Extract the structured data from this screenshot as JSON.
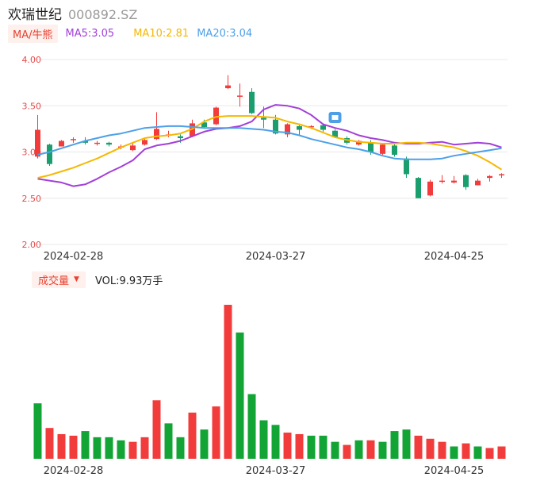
{
  "header": {
    "name": "欢瑞世纪",
    "code": "000892.SZ"
  },
  "ma_bar": {
    "type_label": "MA/牛熊",
    "ma5": "MA5:3.05",
    "ma10": "MA10:2.81",
    "ma20": "MA20:3.04"
  },
  "volume_bar": {
    "type_label": "成交量",
    "value": "VOL:9.93万手"
  },
  "colors": {
    "up": "#f23c3c",
    "down": "#1a9e6e",
    "vol_up": "#f23c3c",
    "vol_down": "#13a436",
    "ma5": "#a23fd9",
    "ma10": "#f5b800",
    "ma20": "#4da0e8",
    "grid": "#e8e8e8"
  },
  "chart_data": [
    {
      "type": "candlestick",
      "y_ticks": [
        "4.00",
        "3.50",
        "3.00",
        "2.50",
        "2.00"
      ],
      "ylim": [
        2.0,
        4.0
      ],
      "x_ticks": [
        {
          "index": 3,
          "label": "2024-02-28"
        },
        {
          "index": 20,
          "label": "2024-03-27"
        },
        {
          "index": 35,
          "label": "2024-04-25"
        }
      ],
      "candles": [
        {
          "o": 2.95,
          "c": 3.24,
          "h": 3.4,
          "l": 2.93
        },
        {
          "o": 3.08,
          "c": 2.87,
          "h": 3.09,
          "l": 2.85
        },
        {
          "o": 3.06,
          "c": 3.12,
          "h": 3.13,
          "l": 3.06
        },
        {
          "o": 3.13,
          "c": 3.14,
          "h": 3.16,
          "l": 3.1
        },
        {
          "o": 3.12,
          "c": 3.1,
          "h": 3.16,
          "l": 3.08
        },
        {
          "o": 3.09,
          "c": 3.1,
          "h": 3.12,
          "l": 3.07
        },
        {
          "o": 3.1,
          "c": 3.08,
          "h": 3.11,
          "l": 3.06
        },
        {
          "o": 3.06,
          "c": 3.06,
          "h": 3.08,
          "l": 3.03
        },
        {
          "o": 3.02,
          "c": 3.07,
          "h": 3.09,
          "l": 3.01
        },
        {
          "o": 3.08,
          "c": 3.13,
          "h": 3.14,
          "l": 3.07
        },
        {
          "o": 3.14,
          "c": 3.25,
          "h": 3.43,
          "l": 3.13
        },
        {
          "o": 3.19,
          "c": 3.19,
          "h": 3.23,
          "l": 3.16
        },
        {
          "o": 3.17,
          "c": 3.15,
          "h": 3.19,
          "l": 3.1
        },
        {
          "o": 3.17,
          "c": 3.31,
          "h": 3.35,
          "l": 3.16
        },
        {
          "o": 3.32,
          "c": 3.27,
          "h": 3.35,
          "l": 3.26
        },
        {
          "o": 3.3,
          "c": 3.48,
          "h": 3.49,
          "l": 3.29
        },
        {
          "o": 3.69,
          "c": 3.72,
          "h": 3.83,
          "l": 3.68
        },
        {
          "o": 3.6,
          "c": 3.61,
          "h": 3.74,
          "l": 3.49
        },
        {
          "o": 3.65,
          "c": 3.42,
          "h": 3.69,
          "l": 3.41
        },
        {
          "o": 3.37,
          "c": 3.35,
          "h": 3.49,
          "l": 3.26
        },
        {
          "o": 3.35,
          "c": 3.2,
          "h": 3.4,
          "l": 3.19
        },
        {
          "o": 3.19,
          "c": 3.3,
          "h": 3.31,
          "l": 3.16
        },
        {
          "o": 3.28,
          "c": 3.24,
          "h": 3.29,
          "l": 3.18
        },
        {
          "o": 3.27,
          "c": 3.28,
          "h": 3.29,
          "l": 3.25
        },
        {
          "o": 3.29,
          "c": 3.24,
          "h": 3.3,
          "l": 3.22
        },
        {
          "o": 3.23,
          "c": 3.16,
          "h": 3.25,
          "l": 3.15
        },
        {
          "o": 3.15,
          "c": 3.1,
          "h": 3.17,
          "l": 3.08
        },
        {
          "o": 3.08,
          "c": 3.12,
          "h": 3.13,
          "l": 3.07
        },
        {
          "o": 3.1,
          "c": 3.0,
          "h": 3.13,
          "l": 2.97
        },
        {
          "o": 2.98,
          "c": 3.08,
          "h": 3.09,
          "l": 2.97
        },
        {
          "o": 3.07,
          "c": 2.97,
          "h": 3.09,
          "l": 2.95
        },
        {
          "o": 2.93,
          "c": 2.76,
          "h": 2.95,
          "l": 2.72
        },
        {
          "o": 2.72,
          "c": 2.5,
          "h": 2.73,
          "l": 2.5
        },
        {
          "o": 2.53,
          "c": 2.68,
          "h": 2.7,
          "l": 2.52
        },
        {
          "o": 2.68,
          "c": 2.69,
          "h": 2.75,
          "l": 2.66
        },
        {
          "o": 2.67,
          "c": 2.69,
          "h": 2.74,
          "l": 2.66
        },
        {
          "o": 2.75,
          "c": 2.62,
          "h": 2.76,
          "l": 2.59
        },
        {
          "o": 2.64,
          "c": 2.69,
          "h": 2.71,
          "l": 2.64
        },
        {
          "o": 2.72,
          "c": 2.74,
          "h": 2.75,
          "l": 2.68
        },
        {
          "o": 2.75,
          "c": 2.76,
          "h": 2.77,
          "l": 2.72
        }
      ],
      "ma5": [
        2.71,
        2.69,
        2.67,
        2.63,
        2.65,
        2.71,
        2.78,
        2.84,
        2.91,
        3.03,
        3.07,
        3.09,
        3.12,
        3.17,
        3.22,
        3.25,
        3.26,
        3.28,
        3.33,
        3.46,
        3.51,
        3.5,
        3.47,
        3.4,
        3.3,
        3.26,
        3.23,
        3.18,
        3.15,
        3.13,
        3.1,
        3.09,
        3.09,
        3.1,
        3.11,
        3.08,
        3.09,
        3.1,
        3.09,
        3.05
      ],
      "ma10": [
        2.72,
        2.75,
        2.79,
        2.83,
        2.88,
        2.93,
        2.99,
        3.05,
        3.1,
        3.15,
        3.17,
        3.18,
        3.2,
        3.25,
        3.33,
        3.38,
        3.39,
        3.39,
        3.39,
        3.38,
        3.37,
        3.33,
        3.3,
        3.26,
        3.21,
        3.16,
        3.13,
        3.11,
        3.1,
        3.09,
        3.09,
        3.1,
        3.1,
        3.09,
        3.07,
        3.05,
        3.01,
        2.96,
        2.89,
        2.81
      ],
      "ma20": [
        2.97,
        3.0,
        3.04,
        3.08,
        3.12,
        3.15,
        3.18,
        3.2,
        3.23,
        3.26,
        3.27,
        3.28,
        3.28,
        3.27,
        3.26,
        3.26,
        3.26,
        3.26,
        3.25,
        3.24,
        3.22,
        3.21,
        3.18,
        3.14,
        3.11,
        3.08,
        3.05,
        3.03,
        3.0,
        2.96,
        2.93,
        2.92,
        2.92,
        2.92,
        2.93,
        2.96,
        2.98,
        3.0,
        3.02,
        3.04
      ]
    },
    {
      "type": "bar",
      "ylim": [
        0,
        100
      ],
      "values": [
        36,
        20,
        16,
        15,
        18,
        14,
        14,
        12,
        11,
        14,
        38,
        23,
        14,
        30,
        19,
        34,
        100,
        82,
        42,
        25,
        22,
        17,
        16,
        15,
        15,
        11,
        9,
        12,
        12,
        11,
        18,
        19,
        15,
        13,
        11,
        8,
        10,
        8,
        7,
        8
      ],
      "directions": [
        "down",
        "up",
        "up",
        "up",
        "down",
        "down",
        "down",
        "down",
        "up",
        "up",
        "up",
        "down",
        "down",
        "up",
        "down",
        "up",
        "up",
        "down",
        "down",
        "down",
        "down",
        "up",
        "up",
        "down",
        "down",
        "down",
        "up",
        "down",
        "up",
        "down",
        "down",
        "down",
        "up",
        "up",
        "up",
        "down",
        "up",
        "down",
        "up",
        "up"
      ]
    }
  ]
}
